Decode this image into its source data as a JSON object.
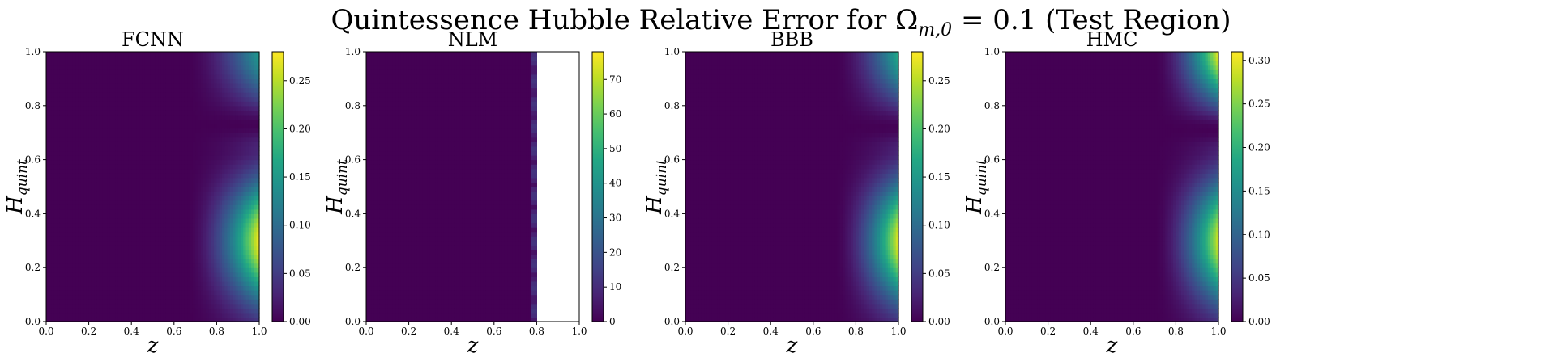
{
  "figure": {
    "title": "Quintessence Hubble Relative Error for Ω",
    "title_subscript": "m,0",
    "title_suffix": " = 0.1 (Test Region)"
  },
  "colormap": "viridis",
  "chart_data": [
    {
      "type": "heatmap",
      "title": "FCNN",
      "xlabel": "z",
      "ylabel": "H",
      "ylabel_subscript": "quint",
      "xlim": [
        0.0,
        1.0
      ],
      "ylim": [
        0.0,
        1.0
      ],
      "xticks": [
        "0.0",
        "0.2",
        "0.4",
        "0.6",
        "0.8",
        "1.0"
      ],
      "yticks": [
        "0.0",
        "0.2",
        "0.4",
        "0.6",
        "0.8",
        "1.0"
      ],
      "colorbar_range": [
        0.0,
        0.28
      ],
      "colorbar_ticks": [
        "0.00",
        "0.05",
        "0.10",
        "0.15",
        "0.20",
        "0.25"
      ],
      "field": {
        "onset_z": 0.66,
        "peak_h": 0.3,
        "peak_value": 0.28,
        "dip_h": 0.73,
        "top_value": 0.15,
        "blank_from_z": null
      }
    },
    {
      "type": "heatmap",
      "title": "NLM",
      "xlabel": "z",
      "ylabel": "H",
      "ylabel_subscript": "quint",
      "xlim": [
        0.0,
        1.0
      ],
      "ylim": [
        0.0,
        1.0
      ],
      "xticks": [
        "0.0",
        "0.2",
        "0.4",
        "0.6",
        "0.8",
        "1.0"
      ],
      "yticks": [
        "0.0",
        "0.2",
        "0.4",
        "0.6",
        "0.8",
        "1.0"
      ],
      "colorbar_range": [
        0,
        78
      ],
      "colorbar_ticks": [
        "0",
        "10",
        "20",
        "30",
        "40",
        "50",
        "60",
        "70"
      ],
      "field": {
        "onset_z": 0.78,
        "peak_h": 0.3,
        "peak_value": 12,
        "dip_h": 0.73,
        "top_value": 8,
        "blank_from_z": 0.8
      }
    },
    {
      "type": "heatmap",
      "title": "BBB",
      "xlabel": "z",
      "ylabel": "H",
      "ylabel_subscript": "quint",
      "xlim": [
        0.0,
        1.0
      ],
      "ylim": [
        0.0,
        1.0
      ],
      "xticks": [
        "0.0",
        "0.2",
        "0.4",
        "0.6",
        "0.8",
        "1.0"
      ],
      "yticks": [
        "0.0",
        "0.2",
        "0.4",
        "0.6",
        "0.8",
        "1.0"
      ],
      "colorbar_range": [
        0.0,
        0.28
      ],
      "colorbar_ticks": [
        "0.00",
        "0.05",
        "0.10",
        "0.15",
        "0.20",
        "0.25"
      ],
      "field": {
        "onset_z": 0.7,
        "peak_h": 0.3,
        "peak_value": 0.27,
        "dip_h": 0.72,
        "top_value": 0.17,
        "blank_from_z": null
      }
    },
    {
      "type": "heatmap",
      "title": "HMC",
      "xlabel": "z",
      "ylabel": "H",
      "ylabel_subscript": "quint",
      "xlim": [
        0.0,
        1.0
      ],
      "ylim": [
        0.0,
        1.0
      ],
      "xticks": [
        "0.0",
        "0.2",
        "0.4",
        "0.6",
        "0.8",
        "1.0"
      ],
      "yticks": [
        "0.0",
        "0.2",
        "0.4",
        "0.6",
        "0.8",
        "1.0"
      ],
      "colorbar_range": [
        0.0,
        0.31
      ],
      "colorbar_ticks": [
        "0.00",
        "0.05",
        "0.10",
        "0.15",
        "0.20",
        "0.25",
        "0.30"
      ],
      "field": {
        "onset_z": 0.7,
        "peak_h": 0.3,
        "peak_value": 0.29,
        "dip_h": 0.71,
        "top_value": 0.3,
        "blank_from_z": null
      }
    }
  ]
}
